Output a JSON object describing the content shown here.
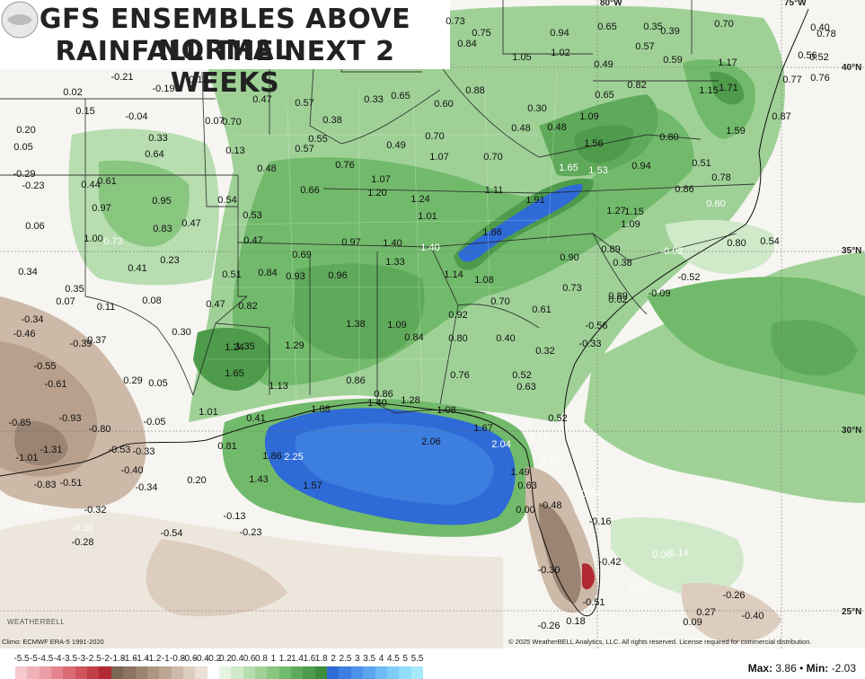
{
  "title": {
    "line1": "GFS ENSEMBLES ABOVE NORMAL",
    "line2": "RAINFALL THE NEXT 2 WEEKS"
  },
  "credits": {
    "climo": "Climo: ECMWF ERA-5 1991-2020",
    "copyright": "© 2025 WeatherBELL Analytics, LLC. All rights reserved. License required for commercial distribution."
  },
  "logo": {
    "text": "WEATHERBELL"
  },
  "lat_labels": [
    "40°N",
    "35°N",
    "30°N",
    "25°N"
  ],
  "lon_labels": [
    "80°W",
    "75°W"
  ],
  "stats": {
    "max_label": "Max:",
    "max_value": "3.86",
    "sep": "•",
    "min_label": "Min:",
    "min_value": "-2.03"
  },
  "legend": {
    "ticks": [
      "-5.5",
      "-5",
      "-4.5",
      "-4",
      "-3.5",
      "-3",
      "-2.5",
      "-2",
      "-1.8",
      "-1.6",
      "-1.4",
      "-1.2",
      "-1",
      "-0.8",
      "-0.6",
      "-0.4",
      "-0.2",
      "0.2",
      "0.4",
      "0.6",
      "0.8",
      "1",
      "1.2",
      "1.4",
      "1.6",
      "1.8",
      "2",
      "2.5",
      "3",
      "3.5",
      "4",
      "4.5",
      "5",
      "5.5"
    ],
    "colors": [
      "#f5c9ce",
      "#f0b3b9",
      "#eb9ca4",
      "#e3848d",
      "#da6b74",
      "#cf545c",
      "#c23e46",
      "#b12a31",
      "#7b6654",
      "#8b7462",
      "#9b8472",
      "#ab9583",
      "#bda694",
      "#cdb9a8",
      "#ddcdbf",
      "#ebe0d6",
      "#ffffff",
      "#e6f3e2",
      "#cfe9c9",
      "#b7ddb0",
      "#9fd197",
      "#89c680",
      "#72ba6b",
      "#5faa5a",
      "#4d9b4b",
      "#3d8b3e",
      "#2e6bd6",
      "#3d7fe0",
      "#4c92e8",
      "#5ca6ef",
      "#6dbaf4",
      "#7ecdf8",
      "#91ddfa",
      "#a6e9fb"
    ]
  },
  "map_values": [
    {
      "v": "0.73"
    },
    {
      "v": "0.75"
    },
    {
      "v": "0.84"
    },
    {
      "v": "0.94"
    },
    {
      "v": "0.65"
    },
    {
      "v": "0.35"
    },
    {
      "v": "0.39"
    },
    {
      "v": "0.70"
    },
    {
      "v": "0.40"
    },
    {
      "v": "0.78"
    },
    {
      "v": "1.05"
    },
    {
      "v": "1.02"
    },
    {
      "v": "0.57"
    },
    {
      "v": "0.49"
    },
    {
      "v": "0.59"
    },
    {
      "v": "1.17"
    },
    {
      "v": "0.56"
    },
    {
      "v": "0.52"
    },
    {
      "v": "-0.21"
    },
    {
      "v": "0.12"
    },
    {
      "v": "0.02"
    },
    {
      "v": "-0.19"
    },
    {
      "v": "0.88"
    },
    {
      "v": "0.82"
    },
    {
      "v": "1.15"
    },
    {
      "v": "1.71"
    },
    {
      "v": "0.77"
    },
    {
      "v": "0.76"
    },
    {
      "v": "0.15"
    },
    {
      "v": "0.47"
    },
    {
      "v": "0.57"
    },
    {
      "v": "0.33"
    },
    {
      "v": "0.65"
    },
    {
      "v": "0.60"
    },
    {
      "v": "0.65"
    },
    {
      "v": "0.30"
    },
    {
      "v": "1.09"
    },
    {
      "v": "0.87"
    },
    {
      "v": "-0.04"
    },
    {
      "v": "0.07"
    },
    {
      "v": "0.70"
    },
    {
      "v": "0.38"
    },
    {
      "v": "0.48"
    },
    {
      "v": "0.48"
    },
    {
      "v": "1.59"
    },
    {
      "v": "0.20"
    },
    {
      "v": "0.33"
    },
    {
      "v": "0.55"
    },
    {
      "v": "0.70"
    },
    {
      "v": "1.56"
    },
    {
      "v": "0.80"
    },
    {
      "v": "0.05"
    },
    {
      "v": "0.13"
    },
    {
      "v": "0.57"
    },
    {
      "v": "0.49"
    },
    {
      "v": "0.64"
    },
    {
      "v": "0.76"
    },
    {
      "v": "1.07"
    },
    {
      "v": "0.70"
    },
    {
      "v": "1.65"
    },
    {
      "v": "1.53"
    },
    {
      "v": "0.94"
    },
    {
      "v": "0.51"
    },
    {
      "v": "-0.29"
    },
    {
      "v": "0.48"
    },
    {
      "v": "1.07"
    },
    {
      "v": "0.78"
    },
    {
      "v": "-0.23"
    },
    {
      "v": "0.44"
    },
    {
      "v": "0.61"
    },
    {
      "v": "0.66"
    },
    {
      "v": "1.20"
    },
    {
      "v": "1.11"
    },
    {
      "v": "0.86"
    },
    {
      "v": "0.95"
    },
    {
      "v": "0.54"
    },
    {
      "v": "1.24"
    },
    {
      "v": "1.91"
    },
    {
      "v": "0.60"
    },
    {
      "v": "0.97"
    },
    {
      "v": "0.53"
    },
    {
      "v": "1.01"
    },
    {
      "v": "1.27"
    },
    {
      "v": "1.15"
    },
    {
      "v": "0.06"
    },
    {
      "v": "0.83"
    },
    {
      "v": "0.47"
    },
    {
      "v": "1.09"
    },
    {
      "v": "1.00"
    },
    {
      "v": "0.73"
    },
    {
      "v": "0.47"
    },
    {
      "v": "1.86"
    },
    {
      "v": "0.80"
    },
    {
      "v": "0.54"
    },
    {
      "v": "0.97"
    },
    {
      "v": "1.40"
    },
    {
      "v": "1.40"
    },
    {
      "v": "-0.02"
    },
    {
      "v": "0.89"
    },
    {
      "v": "0.69"
    },
    {
      "v": "0.90"
    },
    {
      "v": "0.23"
    },
    {
      "v": "1.33"
    },
    {
      "v": "0.38"
    },
    {
      "v": "0.34"
    },
    {
      "v": "0.41"
    },
    {
      "v": "0.51"
    },
    {
      "v": "0.84"
    },
    {
      "v": "0.93"
    },
    {
      "v": "0.96"
    },
    {
      "v": "1.14"
    },
    {
      "v": "1.08"
    },
    {
      "v": "-0.52"
    },
    {
      "v": "0.35"
    },
    {
      "v": "0.73"
    },
    {
      "v": "-0.09"
    },
    {
      "v": "0.07"
    },
    {
      "v": "0.08"
    },
    {
      "v": "0.89"
    },
    {
      "v": "0.70"
    },
    {
      "v": "0.02"
    },
    {
      "v": "0.11"
    },
    {
      "v": "0.47"
    },
    {
      "v": "0.82"
    },
    {
      "v": "0.61"
    },
    {
      "v": "-0.34"
    },
    {
      "v": "0.92"
    },
    {
      "v": "1.38"
    },
    {
      "v": "1.09"
    },
    {
      "v": "-0.56"
    },
    {
      "v": "-0.46"
    },
    {
      "v": "0.30"
    },
    {
      "v": "0.84"
    },
    {
      "v": "0.80"
    },
    {
      "v": "0.40"
    },
    {
      "v": "-0.37"
    },
    {
      "v": "-0.39"
    },
    {
      "v": "1.29"
    },
    {
      "v": "0.32"
    },
    {
      "v": "-0.33"
    },
    {
      "v": "1.24"
    },
    {
      "v": "1.35"
    },
    {
      "v": "-0.55"
    },
    {
      "v": "1.65"
    },
    {
      "v": "0.76"
    },
    {
      "v": "0.52"
    },
    {
      "v": "-0.61"
    },
    {
      "v": "0.29"
    },
    {
      "v": "0.05"
    },
    {
      "v": "1.13"
    },
    {
      "v": "0.86"
    },
    {
      "v": "0.63"
    },
    {
      "v": "0.86"
    },
    {
      "v": "1.28"
    },
    {
      "v": "1.40"
    },
    {
      "v": "1.88"
    },
    {
      "v": "1.01"
    },
    {
      "v": "1.08"
    },
    {
      "v": "0.52"
    },
    {
      "v": "-0.85"
    },
    {
      "v": "-0.93"
    },
    {
      "v": "-0.05"
    },
    {
      "v": "0.41"
    },
    {
      "v": "-0.80"
    },
    {
      "v": "1.67"
    },
    {
      "v": "0.72"
    },
    {
      "v": "2.06"
    },
    {
      "v": "2.04"
    },
    {
      "v": "-1.31"
    },
    {
      "v": "-0.53"
    },
    {
      "v": "-0.33"
    },
    {
      "v": "0.81"
    },
    {
      "v": "-1.01"
    },
    {
      "v": "1.86"
    },
    {
      "v": "2.25"
    },
    {
      "v": "0.23"
    },
    {
      "v": "-0.40"
    },
    {
      "v": "1.49"
    },
    {
      "v": "-0.83"
    },
    {
      "v": "-0.51"
    },
    {
      "v": "0.20"
    },
    {
      "v": "1.43"
    },
    {
      "v": "1.57"
    },
    {
      "v": "0.63"
    },
    {
      "v": "-0.34"
    },
    {
      "v": "0.54"
    },
    {
      "v": "-0.31"
    },
    {
      "v": "-0.32"
    },
    {
      "v": "0.00"
    },
    {
      "v": "-0.48"
    },
    {
      "v": "-0.13"
    },
    {
      "v": "-0.16"
    },
    {
      "v": "-0.30"
    },
    {
      "v": "-0.54"
    },
    {
      "v": "-0.23"
    },
    {
      "v": "-0.28"
    },
    {
      "v": "0.06"
    },
    {
      "v": "0.14"
    },
    {
      "v": "-0.30"
    },
    {
      "v": "-0.42"
    },
    {
      "v": "0.62"
    },
    {
      "v": "-0.26"
    },
    {
      "v": "-0.51"
    },
    {
      "v": "0.27"
    },
    {
      "v": "-0.40"
    },
    {
      "v": "0.09"
    },
    {
      "v": "-0.26"
    },
    {
      "v": "0.18"
    }
  ]
}
